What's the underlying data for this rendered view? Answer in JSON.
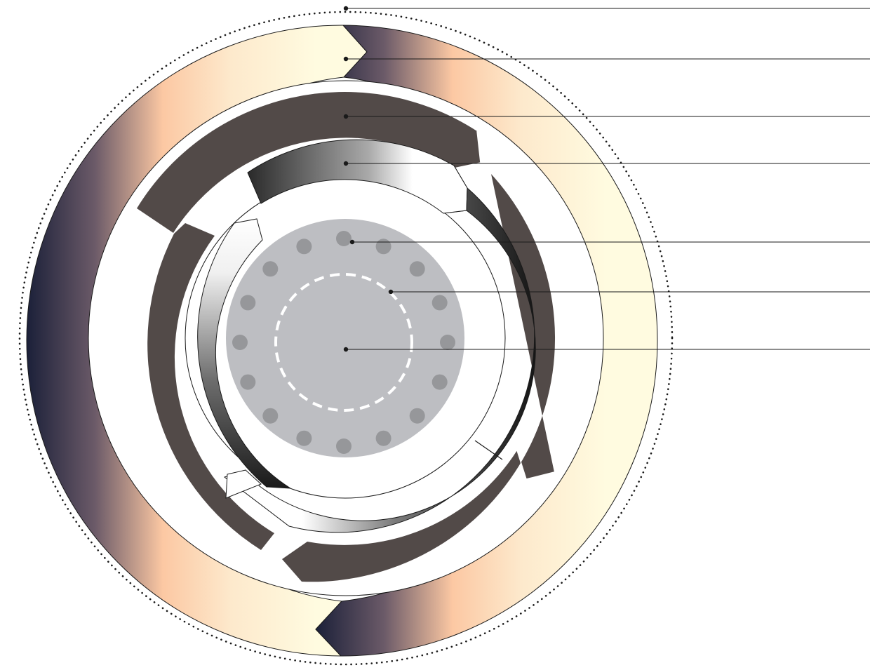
{
  "diagram": {
    "type": "concentric-ring-infographic",
    "background": "#ffffff",
    "rings": [
      {
        "name": "outer-dotted-boundary",
        "style": "dotted",
        "color": "#1a1a1a"
      },
      {
        "name": "outer-gradient-arrow-ring",
        "gradient": [
          "#1b2039",
          "#6b5a68",
          "#fcc8a3",
          "#fdf6d4",
          "#fffbe0"
        ]
      },
      {
        "name": "dark-segmented-ring",
        "segments": 3,
        "color": "#524a48"
      },
      {
        "name": "metallic-segmented-ring",
        "segments": 3,
        "gradient": [
          "#1b1b1b",
          "#ffffff",
          "#2a2a2a"
        ]
      },
      {
        "name": "core-disc",
        "color": "#bdbec2"
      },
      {
        "name": "dot-ring",
        "dot_count": 16,
        "color": "#96979a"
      },
      {
        "name": "dashed-inner-circle",
        "style": "dashed",
        "color": "#ffffff"
      },
      {
        "name": "center-point",
        "color": "#1a1a1a"
      }
    ],
    "callouts": {
      "count": 7,
      "line_color": "#1a1a1a",
      "labels": []
    }
  }
}
